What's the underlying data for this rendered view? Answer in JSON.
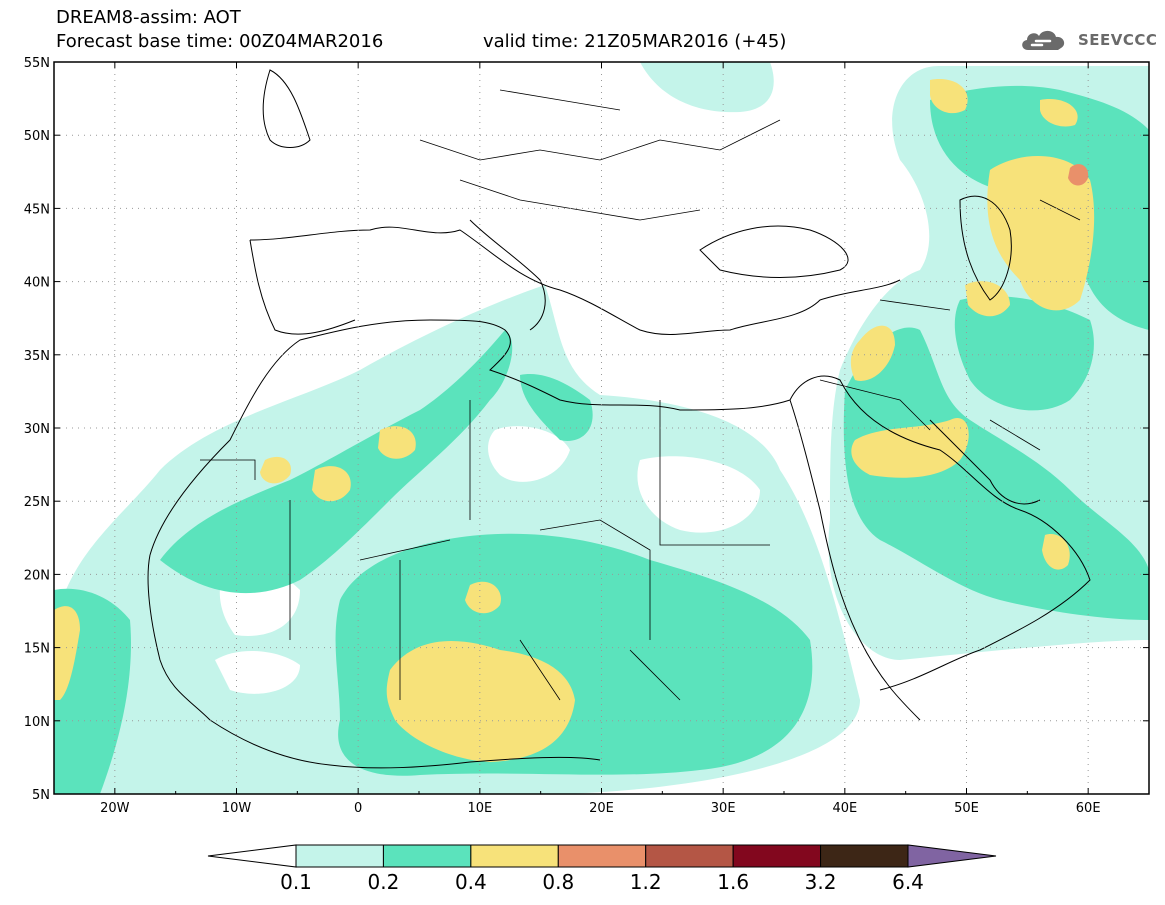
{
  "header": {
    "line1": "DREAM8-assim: AOT",
    "line2": "Forecast base time: 00Z04MAR2016",
    "valid": "valid time: 21Z05MAR2016 (+45)"
  },
  "logo": {
    "text": "SEEVCCC",
    "icon": "cloud-logo-icon",
    "color": "#6a6a6a"
  },
  "map": {
    "lon_range": [
      -25,
      65
    ],
    "lat_range": [
      5,
      55
    ],
    "lat_labels": [
      "55N",
      "50N",
      "45N",
      "40N",
      "35N",
      "30N",
      "25N",
      "20N",
      "15N",
      "10N",
      "5N"
    ],
    "lon_labels": [
      "20W",
      "10W",
      "0",
      "10E",
      "20E",
      "30E",
      "40E",
      "50E",
      "60E"
    ],
    "gridlines": "dotted"
  },
  "colorbar": {
    "labels": [
      "0.1",
      "0.2",
      "0.4",
      "0.8",
      "1.2",
      "1.6",
      "3.2",
      "6.4"
    ],
    "colors": [
      "#ffffff",
      "#c4f4ea",
      "#5be3bc",
      "#f7e27a",
      "#e9906a",
      "#b45645",
      "#82071e",
      "#3d2616",
      "#8064a2"
    ]
  }
}
